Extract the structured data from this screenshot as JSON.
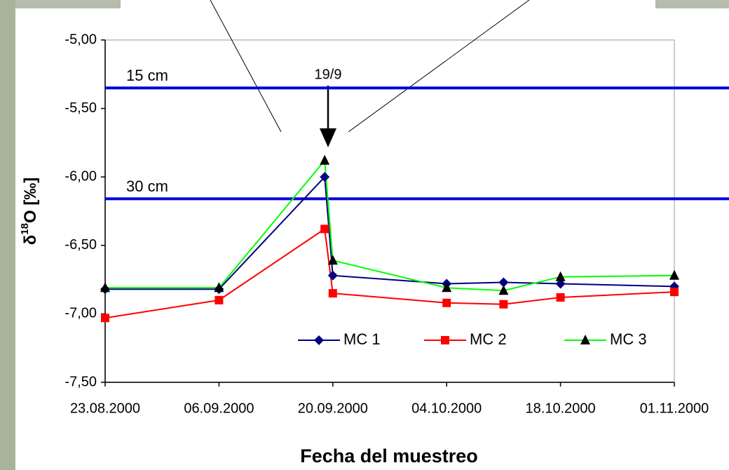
{
  "chart_data": {
    "type": "line",
    "x": [
      "23.08.2000",
      "06.09.2000",
      "19.09.2000",
      "20.09.2000",
      "04.10.2000",
      "11.10.2000",
      "18.10.2000",
      "01.11.2000"
    ],
    "series": [
      {
        "name": "MC 1",
        "color": "#000080",
        "marker": "diamond",
        "marker_color": "#000080",
        "values": [
          -6.82,
          -6.82,
          -6.0,
          -6.72,
          -6.78,
          -6.77,
          -6.78,
          -6.8
        ]
      },
      {
        "name": "MC 2",
        "color": "#ff0000",
        "marker": "square",
        "marker_color": "#ff0000",
        "values": [
          -7.03,
          -6.9,
          -6.38,
          -6.85,
          -6.92,
          -6.93,
          -6.88,
          -6.84
        ]
      },
      {
        "name": "MC 3",
        "color": "#00ff00",
        "marker": "triangle",
        "marker_color": "#000000",
        "values": [
          -6.81,
          -6.81,
          -5.88,
          -6.61,
          -6.81,
          -6.83,
          -6.73,
          -6.72
        ]
      }
    ],
    "xlim": [
      "23.08.2000",
      "01.11.2000"
    ],
    "xticks": [
      "23.08.2000",
      "06.09.2000",
      "20.09.2000",
      "04.10.2000",
      "18.10.2000",
      "01.11.2000"
    ],
    "ylim": [
      -7.5,
      -5.0
    ],
    "yticks": [
      {
        "value": -5.0,
        "label": "-5,00"
      },
      {
        "value": -5.5,
        "label": "-5,50"
      },
      {
        "value": -6.0,
        "label": "-6,00"
      },
      {
        "value": -6.5,
        "label": "-6,50"
      },
      {
        "value": -7.0,
        "label": "-7,00"
      },
      {
        "value": -7.5,
        "label": "-7,50"
      }
    ],
    "hlines": [
      {
        "label": "15 cm",
        "value": -5.35,
        "color": "#0000e0"
      },
      {
        "label": "30 cm",
        "value": -6.16,
        "color": "#0000e0"
      }
    ],
    "annotation": "19/9",
    "x_label": "Fecha del muestreo",
    "y_label": {
      "prefix": "δ",
      "sup": "18",
      "suffix": "O [‰]"
    }
  }
}
